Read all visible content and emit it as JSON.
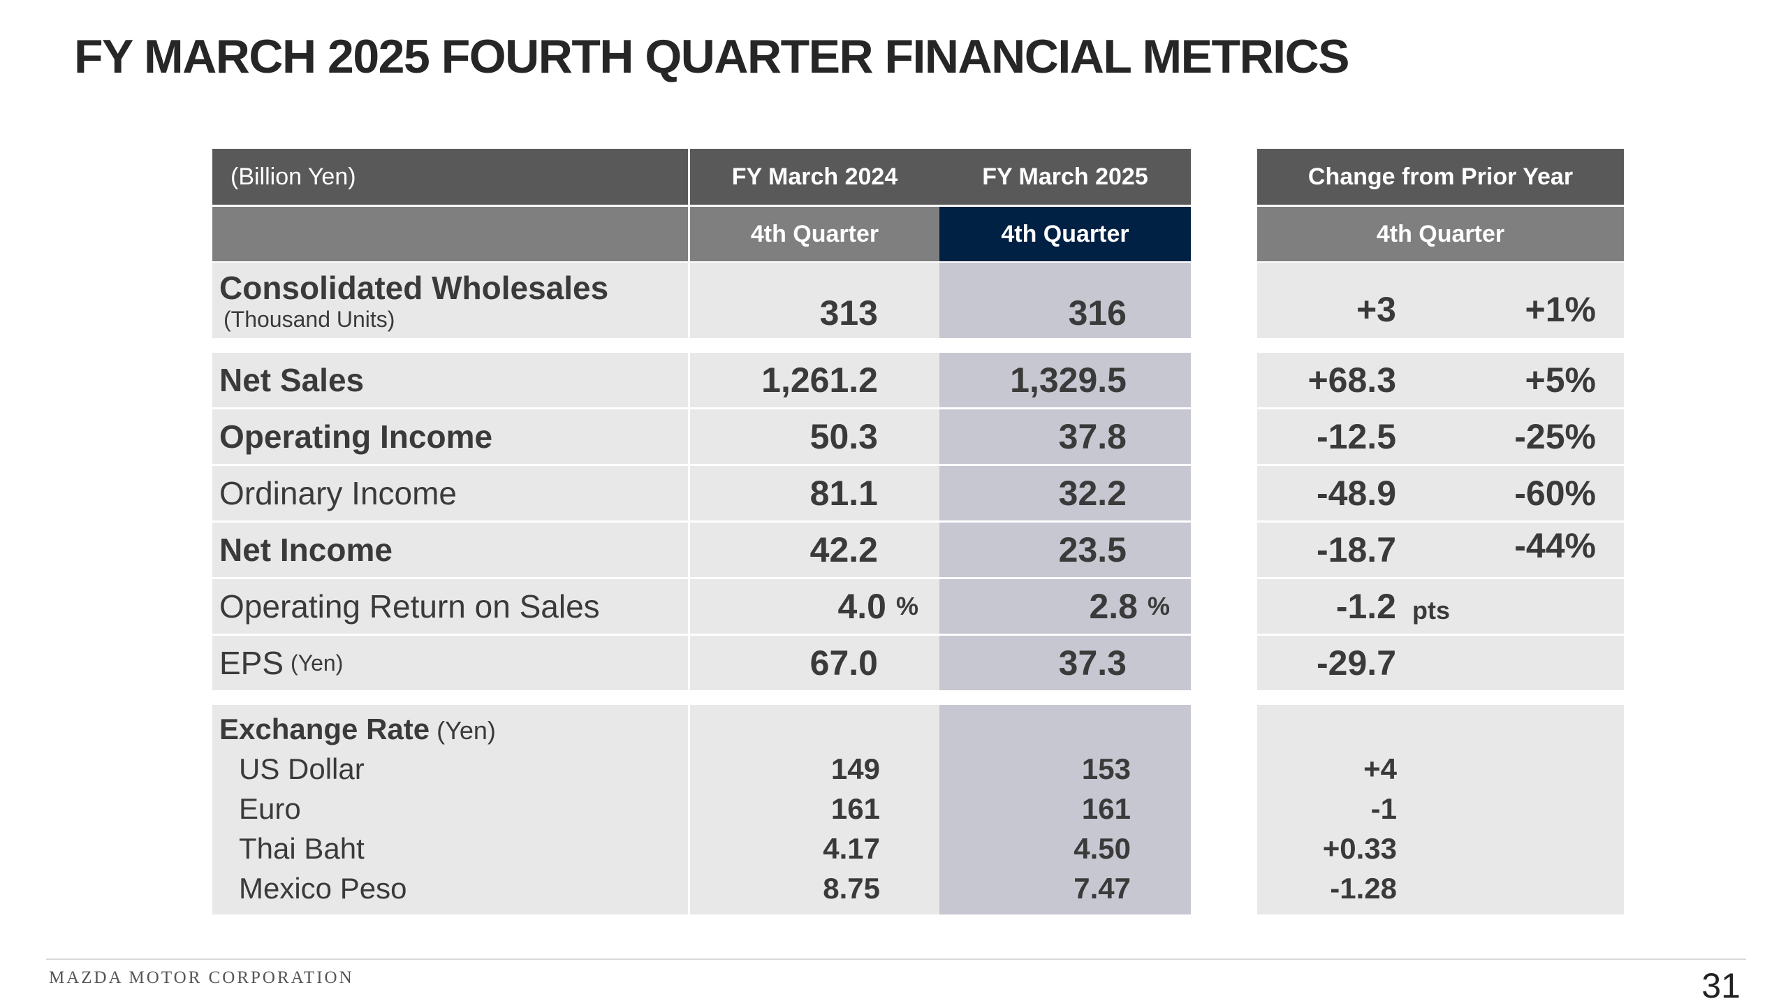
{
  "title": "FY MARCH 2025 FOURTH QUARTER FINANCIAL METRICS",
  "header": {
    "unit_label": "(Billion Yen)",
    "col_fy2024": "FY March 2024",
    "col_fy2025": "FY March 2025",
    "col_change": "Change from Prior Year",
    "quarter_fy2024": "4th Quarter",
    "quarter_fy2025": "4th Quarter",
    "quarter_change": "4th Quarter"
  },
  "rows": {
    "wholesales": {
      "label": "Consolidated Wholesales",
      "sublabel": "(Thousand Units)",
      "fy2024": "313",
      "fy2025": "316",
      "change": "+3",
      "change_pct": "+1%"
    },
    "net_sales": {
      "label": "Net Sales",
      "fy2024": "1,261.2",
      "fy2025": "1,329.5",
      "change": "+68.3",
      "change_pct": "+5%"
    },
    "operating_income": {
      "label": "Operating Income",
      "fy2024": "50.3",
      "fy2025": "37.8",
      "change": "-12.5",
      "change_pct": "-25%"
    },
    "ordinary_income": {
      "label": "Ordinary Income",
      "fy2024": "81.1",
      "fy2025": "32.2",
      "change": "-48.9",
      "change_pct": "-60%"
    },
    "net_income": {
      "label": "Net Income",
      "fy2024": "42.2",
      "fy2025": "23.5",
      "change": "-18.7",
      "change_pct": "-44%"
    },
    "ros": {
      "label": "Operating Return on Sales",
      "fy2024": "4.0",
      "fy2024_unit": "%",
      "fy2025": "2.8",
      "fy2025_unit": "%",
      "change": "-1.2",
      "change_unit": "pts"
    },
    "eps": {
      "label": "EPS",
      "sublabel": "(Yen)",
      "fy2024": "67.0",
      "fy2025": "37.3",
      "change": "-29.7"
    }
  },
  "exchange": {
    "label": "Exchange Rate",
    "sublabel": "(Yen)",
    "items": [
      {
        "label": "US Dollar",
        "fy2024": "149",
        "fy2025": "153",
        "change": "+4"
      },
      {
        "label": "Euro",
        "fy2024": "161",
        "fy2025": "161",
        "change": "-1"
      },
      {
        "label": "Thai Baht",
        "fy2024": "4.17",
        "fy2025": "4.50",
        "change": "+0.33"
      },
      {
        "label": "Mexico Peso",
        "fy2024": "8.75",
        "fy2025": "7.47",
        "change": "-1.28"
      }
    ]
  },
  "footer": {
    "company": "MAZDA MOTOR CORPORATION",
    "page": "31"
  },
  "colors": {
    "header_dark": "#595959",
    "header_mid": "#7f7f7f",
    "header_navy": "#002143",
    "cell_light": "#e8e8e8",
    "cell_highlight": "#c6c7d1"
  }
}
